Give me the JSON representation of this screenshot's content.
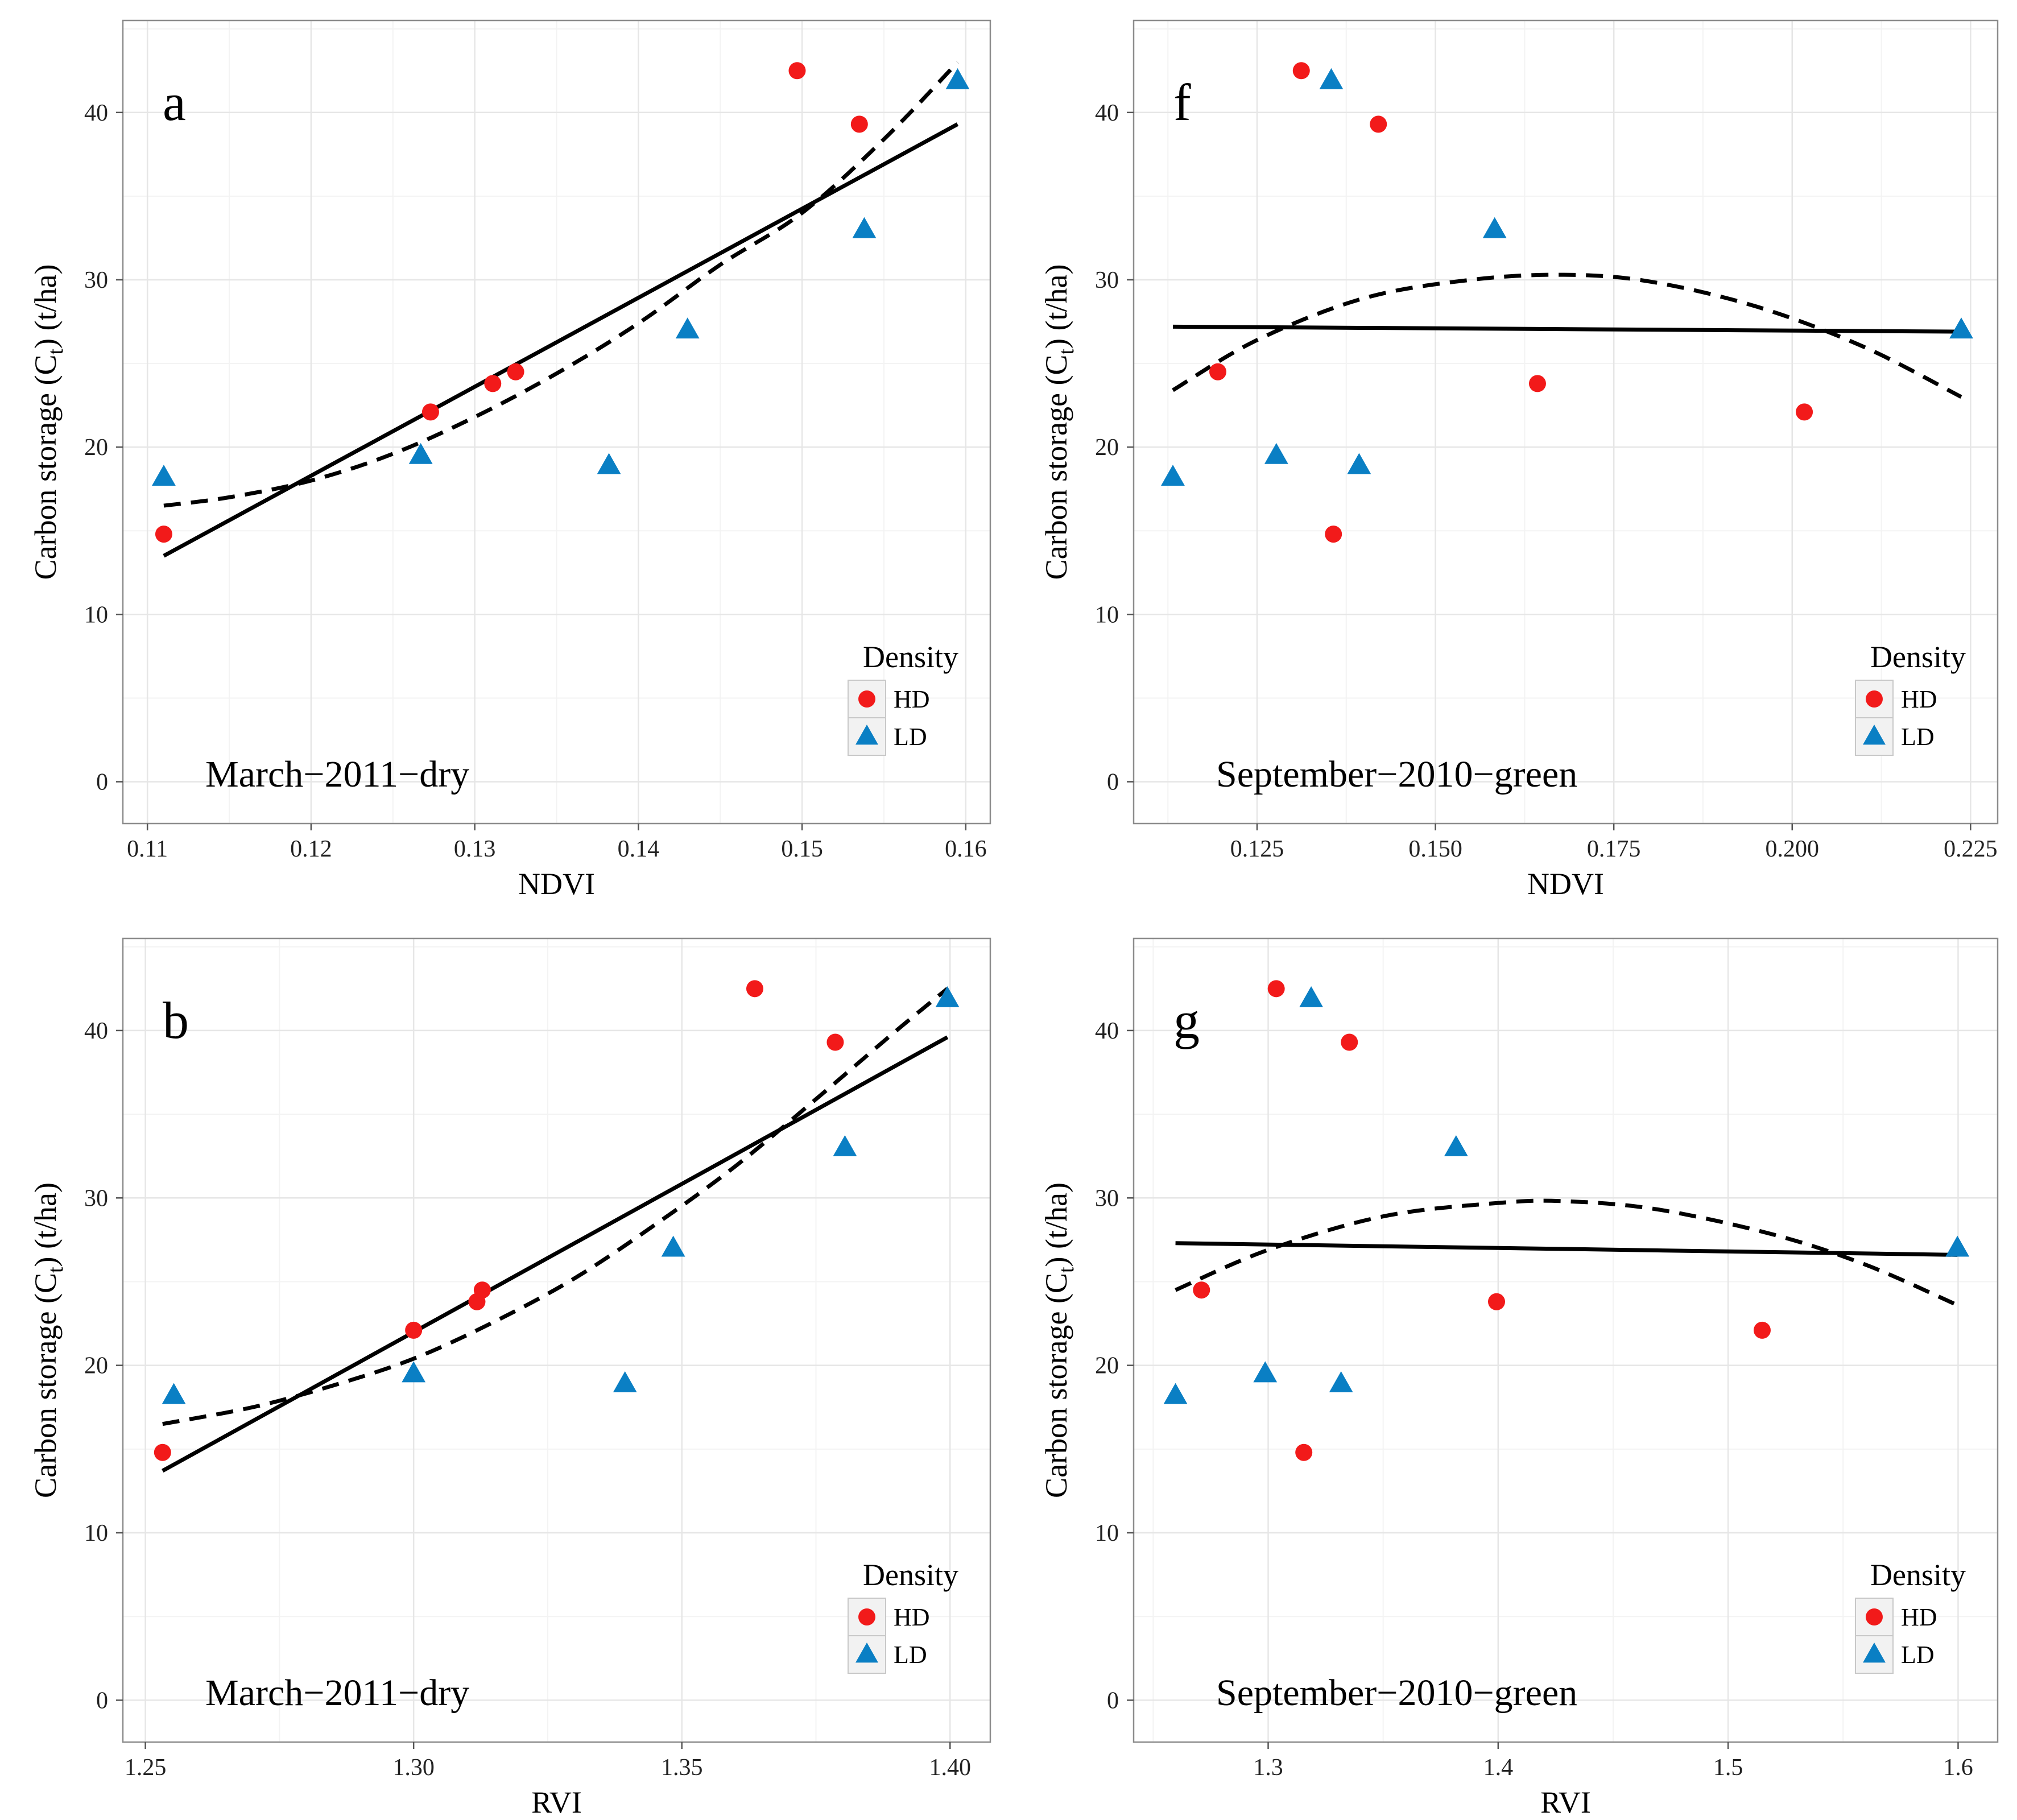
{
  "figure": {
    "legend_title": "Density",
    "legend_entries": [
      "HD",
      "LD"
    ],
    "colors": {
      "HD": "#f21a1a",
      "LD": "#0a7fc4",
      "panel_border": "#8c8c8c",
      "grid_major": "#e6e6e6",
      "grid_minor": "#f3f3f3",
      "line": "#000000"
    }
  },
  "chart_data": [
    {
      "panel_label": "a",
      "type": "scatter",
      "annotation": "March−2011−dry",
      "xlabel": "NDVI",
      "ylabel_prefix": "Carbon storage (C",
      "ylabel_sub": "t",
      "ylabel_suffix": ") (t/ha)",
      "xlim": [
        0.1085,
        0.1615
      ],
      "ylim": [
        -2.5,
        45.5
      ],
      "xticks": [
        0.11,
        0.12,
        0.13,
        0.14,
        0.15,
        0.16
      ],
      "xtick_labels": [
        "0.11",
        "0.12",
        "0.13",
        "0.14",
        "0.15",
        "0.16"
      ],
      "yticks": [
        0,
        10,
        20,
        30,
        40
      ],
      "ytick_labels": [
        "0",
        "10",
        "20",
        "30",
        "40"
      ],
      "series": [
        {
          "name": "HD",
          "marker": "circle",
          "x": [
            0.111,
            0.1273,
            0.1311,
            0.1325,
            0.1497,
            0.1535
          ],
          "y": [
            14.8,
            22.1,
            23.8,
            24.5,
            42.5,
            39.3
          ]
        },
        {
          "name": "LD",
          "marker": "triangle",
          "x": [
            0.111,
            0.1267,
            0.1382,
            0.143,
            0.1538,
            0.1595
          ],
          "y": [
            18.2,
            19.5,
            18.9,
            27.0,
            33.0,
            41.9
          ]
        }
      ],
      "linear_fit": {
        "x": [
          0.111,
          0.1595
        ],
        "y": [
          13.5,
          39.3
        ]
      },
      "quadratic_fit": {
        "x": [
          0.111,
          0.115,
          0.12,
          0.125,
          0.13,
          0.135,
          0.14,
          0.145,
          0.15,
          0.155,
          0.1595
        ],
        "y": [
          16.5,
          17.0,
          18.0,
          19.6,
          21.8,
          24.4,
          27.4,
          30.9,
          34.0,
          38.4,
          43.0
        ]
      }
    },
    {
      "panel_label": "f",
      "type": "scatter",
      "annotation": "September−2010−green",
      "xlabel": "NDVI",
      "ylabel_prefix": "Carbon storage (C",
      "ylabel_sub": "t",
      "ylabel_suffix": ") (t/ha)",
      "xlim": [
        0.1077,
        0.2288
      ],
      "ylim": [
        -2.5,
        45.5
      ],
      "xticks": [
        0.125,
        0.15,
        0.175,
        0.2,
        0.225
      ],
      "xtick_labels": [
        "0.125",
        "0.150",
        "0.175",
        "0.200",
        "0.225"
      ],
      "yticks": [
        0,
        10,
        20,
        30,
        40
      ],
      "ytick_labels": [
        "0",
        "10",
        "20",
        "30",
        "40"
      ],
      "series": [
        {
          "name": "HD",
          "marker": "circle",
          "x": [
            0.1195,
            0.1312,
            0.1357,
            0.142,
            0.1643,
            0.2017
          ],
          "y": [
            24.5,
            42.5,
            14.8,
            39.3,
            23.8,
            22.1
          ]
        },
        {
          "name": "LD",
          "marker": "triangle",
          "x": [
            0.1132,
            0.1277,
            0.1354,
            0.1393,
            0.1583,
            0.2237
          ],
          "y": [
            18.2,
            19.5,
            41.9,
            18.9,
            33.0,
            27.0
          ]
        }
      ],
      "linear_fit": {
        "x": [
          0.1132,
          0.2237
        ],
        "y": [
          27.2,
          26.9
        ]
      },
      "quadratic_fit": {
        "x": [
          0.1132,
          0.125,
          0.14,
          0.155,
          0.168,
          0.18,
          0.195,
          0.21,
          0.2237
        ],
        "y": [
          23.4,
          26.4,
          28.9,
          30.0,
          30.3,
          29.9,
          28.4,
          26.0,
          23.0
        ]
      }
    },
    {
      "panel_label": "b",
      "type": "scatter",
      "annotation": "March−2011−dry",
      "xlabel": "RVI",
      "ylabel_prefix": "Carbon storage (C",
      "ylabel_sub": "t",
      "ylabel_suffix": ") (t/ha)",
      "xlim": [
        1.2458,
        1.4075
      ],
      "ylim": [
        -2.5,
        45.5
      ],
      "xticks": [
        1.25,
        1.3,
        1.35,
        1.4
      ],
      "xtick_labels": [
        "1.25",
        "1.30",
        "1.35",
        "1.40"
      ],
      "yticks": [
        0,
        10,
        20,
        30,
        40
      ],
      "ytick_labels": [
        "0",
        "10",
        "20",
        "30",
        "40"
      ],
      "series": [
        {
          "name": "HD",
          "marker": "circle",
          "x": [
            1.2532,
            1.3,
            1.3118,
            1.3128,
            1.3636,
            1.3786
          ],
          "y": [
            14.8,
            22.1,
            23.8,
            24.5,
            42.5,
            39.3
          ]
        },
        {
          "name": "LD",
          "marker": "triangle",
          "x": [
            1.2553,
            1.3,
            1.3394,
            1.3484,
            1.3804,
            1.3995
          ],
          "y": [
            18.2,
            19.5,
            18.9,
            27.0,
            33.0,
            41.9
          ]
        }
      ],
      "linear_fit": {
        "x": [
          1.2532,
          1.3995
        ],
        "y": [
          13.7,
          39.6
        ]
      },
      "quadratic_fit": {
        "x": [
          1.2532,
          1.27,
          1.285,
          1.3,
          1.315,
          1.33,
          1.345,
          1.36,
          1.375,
          1.39,
          1.3995
        ],
        "y": [
          16.5,
          17.5,
          18.8,
          20.4,
          22.6,
          25.2,
          28.4,
          31.9,
          35.9,
          40.0,
          42.5
        ]
      }
    },
    {
      "panel_label": "g",
      "type": "scatter",
      "annotation": "September−2010−green",
      "xlabel": "RVI",
      "ylabel_prefix": "Carbon storage (C",
      "ylabel_sub": "t",
      "ylabel_suffix": ") (t/ha)",
      "xlim": [
        1.2415,
        1.6172
      ],
      "ylim": [
        -2.5,
        45.5
      ],
      "xticks": [
        1.3,
        1.4,
        1.5,
        1.6
      ],
      "xtick_labels": [
        "1.3",
        "1.4",
        "1.5",
        "1.6"
      ],
      "yticks": [
        0,
        10,
        20,
        30,
        40
      ],
      "ytick_labels": [
        "0",
        "10",
        "20",
        "30",
        "40"
      ],
      "series": [
        {
          "name": "HD",
          "marker": "circle",
          "x": [
            1.271,
            1.3035,
            1.3155,
            1.3353,
            1.3993,
            1.5148
          ],
          "y": [
            24.5,
            42.5,
            14.8,
            39.3,
            23.8,
            22.1
          ]
        },
        {
          "name": "LD",
          "marker": "triangle",
          "x": [
            1.2597,
            1.2987,
            1.3187,
            1.3317,
            1.3817,
            1.5997
          ],
          "y": [
            18.2,
            19.5,
            41.9,
            18.9,
            33.0,
            27.0
          ]
        }
      ],
      "linear_fit": {
        "x": [
          1.2597,
          1.5997
        ],
        "y": [
          27.3,
          26.6
        ]
      },
      "quadratic_fit": {
        "x": [
          1.2597,
          1.3,
          1.35,
          1.4,
          1.43,
          1.47,
          1.52,
          1.56,
          1.5997
        ],
        "y": [
          24.5,
          26.9,
          28.9,
          29.7,
          29.8,
          29.3,
          27.8,
          26.0,
          23.6
        ]
      }
    }
  ]
}
